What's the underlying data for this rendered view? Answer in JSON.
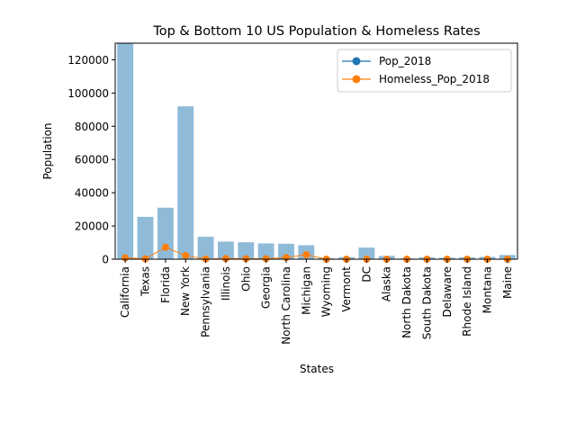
{
  "chart_data": {
    "type": "bar",
    "title": "Top & Bottom 10 US Population & Homeless Rates",
    "xlabel": "States",
    "ylabel": "Population",
    "ylim": [
      0,
      130000
    ],
    "yticks": [
      0,
      20000,
      40000,
      60000,
      80000,
      100000,
      120000
    ],
    "categories": [
      "California",
      "Texas",
      "Florida",
      "New York",
      "Pennsylvania",
      "Illinois",
      "Ohio",
      "Georgia",
      "North Carolina",
      "Michigan",
      "Wyoming",
      "Vermont",
      "DC",
      "Alaska",
      "North Dakota",
      "South Dakota",
      "Delaware",
      "Rhode Island",
      "Montana",
      "Maine"
    ],
    "series": [
      {
        "name": "Pop_2018",
        "kind": "bar",
        "color": "#1f77b4",
        "values": [
          130000,
          25500,
          31000,
          92000,
          13500,
          10600,
          10200,
          9500,
          9300,
          8400,
          600,
          1200,
          7000,
          2000,
          500,
          1100,
          900,
          1100,
          1400,
          2500
        ]
      },
      {
        "name": "Homeless_Pop_2018",
        "kind": "line",
        "color": "#ff7f0e",
        "values": [
          800,
          200,
          7200,
          2200,
          100,
          400,
          300,
          300,
          1000,
          2700,
          0,
          0,
          0,
          0,
          0,
          0,
          0,
          0,
          0,
          0
        ]
      }
    ],
    "legend_position": "top-right"
  }
}
